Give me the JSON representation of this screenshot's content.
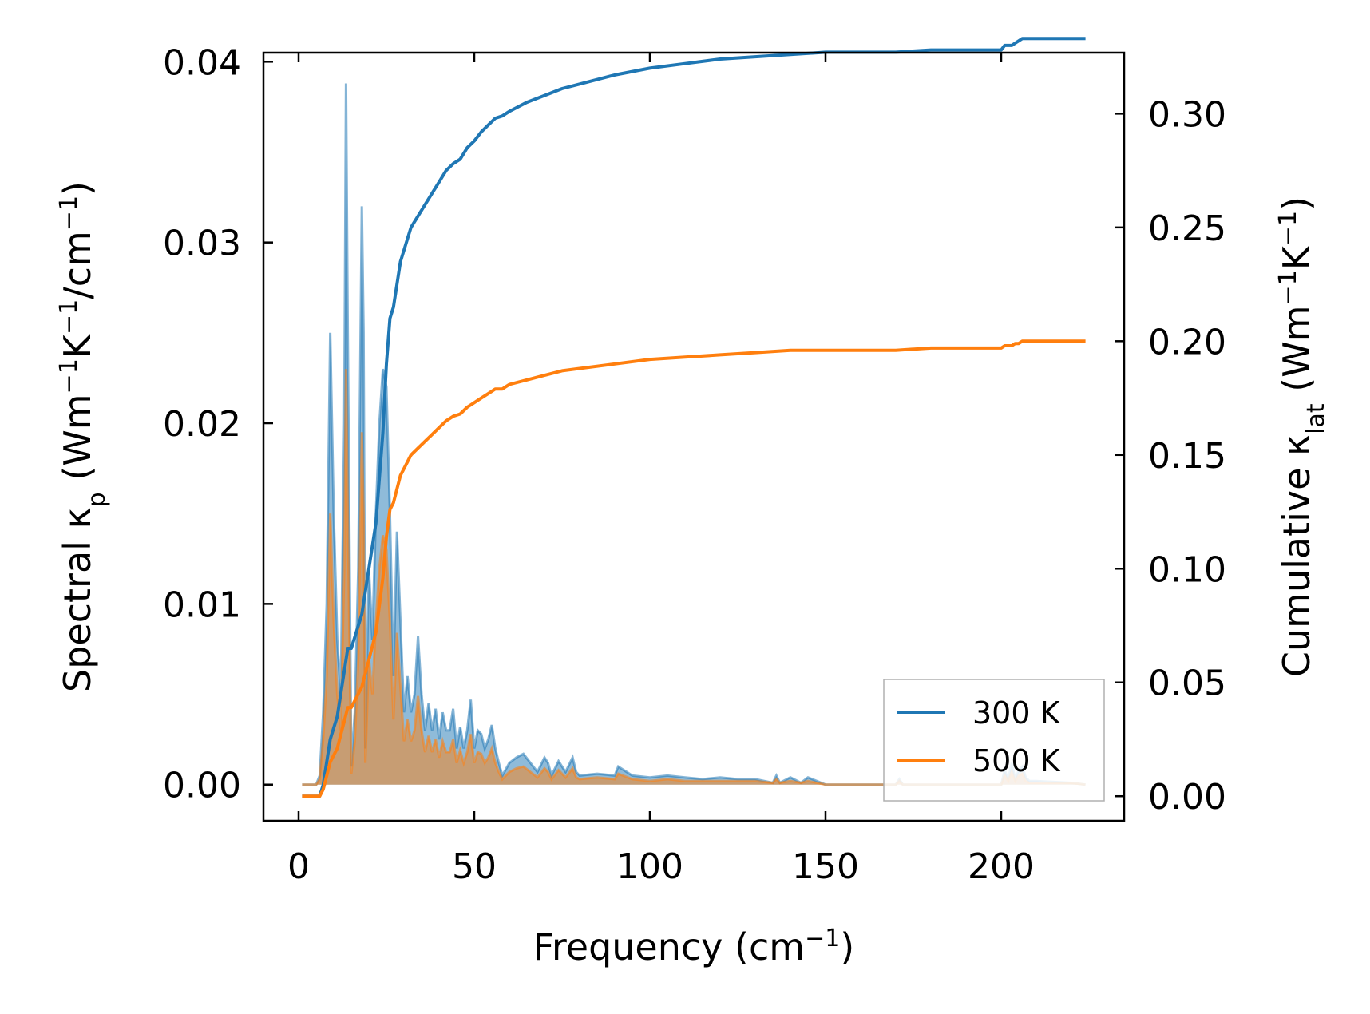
{
  "chart_data": {
    "type": "line",
    "xlabel": {
      "main": "Frequency (cm",
      "sup": "−1",
      "tail": ")"
    },
    "ylabel_left": {
      "pre": "Spectral κ",
      "sub": "p",
      "mid": " (Wm",
      "sup1": "−1",
      "k": "K",
      "sup2": "−1",
      "slash": "/cm",
      "sup3": "−1",
      "tail": ")"
    },
    "ylabel_right": {
      "pre": "Cumulative κ",
      "sub": "lat",
      "mid": " (Wm",
      "sup1": "−1",
      "k": "K",
      "sup2": "−1",
      "tail": ")"
    },
    "xlim": [
      -10,
      235
    ],
    "ylim_left": [
      -0.002,
      0.0405
    ],
    "ylim_right": [
      -0.0108,
      0.3268
    ],
    "xticks": [
      0,
      50,
      100,
      150,
      200
    ],
    "xtick_labels": [
      "0",
      "50",
      "100",
      "150",
      "200"
    ],
    "yticks_left": [
      0.0,
      0.01,
      0.02,
      0.03,
      0.04
    ],
    "ytick_labels_left": [
      "0.00",
      "0.01",
      "0.02",
      "0.03",
      "0.04"
    ],
    "yticks_right": [
      0.0,
      0.05,
      0.1,
      0.15,
      0.2,
      0.25,
      0.3
    ],
    "ytick_labels_right": [
      "0.00",
      "0.05",
      "0.10",
      "0.15",
      "0.20",
      "0.25",
      "0.30"
    ],
    "legend": {
      "placement": "lower-right"
    },
    "colors": {
      "300": "#1f77b4",
      "500": "#ff7f0e"
    },
    "spectral_x": [
      1,
      5,
      6,
      7,
      8,
      9,
      10,
      11,
      12,
      13,
      13.5,
      14,
      15,
      16,
      17,
      18,
      18.5,
      19,
      20,
      21,
      22,
      23,
      24,
      25,
      26,
      27,
      28,
      29,
      30,
      31,
      32,
      33,
      34,
      35,
      36,
      37,
      38,
      39,
      40,
      41,
      42,
      43,
      44,
      45,
      46,
      47,
      48,
      49,
      50,
      51,
      52,
      53,
      54,
      55,
      56,
      57,
      58,
      60,
      62,
      64,
      66,
      68,
      70,
      71,
      72,
      74,
      76,
      78,
      79,
      80,
      85,
      90,
      91,
      95,
      100,
      105,
      110,
      115,
      120,
      125,
      130,
      135,
      136,
      137,
      140,
      143,
      145,
      150,
      160,
      170,
      171,
      172,
      180,
      190,
      200,
      201,
      202,
      203,
      204,
      205,
      206,
      207,
      208,
      210,
      220,
      224
    ],
    "series": [
      {
        "name": "300 K",
        "spectral": [
          0,
          0,
          0.0005,
          0.004,
          0.01,
          0.025,
          0.015,
          0.008,
          0.005,
          0.02,
          0.0388,
          0.025,
          0.001,
          0.004,
          0.012,
          0.032,
          0.025,
          0.002,
          0.012,
          0.008,
          0.015,
          0.02,
          0.023,
          0.022,
          0.015,
          0.006,
          0.014,
          0.009,
          0.004,
          0.006,
          0.004,
          0.005,
          0.0082,
          0.005,
          0.003,
          0.0045,
          0.003,
          0.0042,
          0.0025,
          0.004,
          0.003,
          0.003,
          0.0042,
          0.002,
          0.0032,
          0.002,
          0.003,
          0.0047,
          0.002,
          0.003,
          0.0028,
          0.002,
          0.0025,
          0.0033,
          0.002,
          0.0012,
          0.0005,
          0.0012,
          0.0015,
          0.0017,
          0.0012,
          0.0007,
          0.0015,
          0.0012,
          0.0005,
          0.0013,
          0.0007,
          0.0015,
          0.0007,
          0.0005,
          0.0006,
          0.0005,
          0.001,
          0.0005,
          0.0004,
          0.0005,
          0.0004,
          0.0003,
          0.0004,
          0.0003,
          0.0003,
          0.0001,
          0.0005,
          0.0001,
          0.0004,
          0.0001,
          0.0004,
          0.0,
          0.0,
          0.0,
          0.0003,
          0.0,
          0.0,
          0.0,
          0.0,
          0.0008,
          0.0003,
          0.0012,
          0.0003,
          0.0008,
          0.001,
          0.0004,
          0.0002,
          0.0002,
          0.0001,
          0.0
        ],
        "cum_x": [
          1,
          5,
          6,
          7,
          8,
          9,
          10,
          11,
          12,
          13,
          14,
          15,
          16,
          17,
          18,
          19,
          20,
          21,
          22,
          23,
          24,
          25,
          26,
          27,
          28,
          29,
          30,
          32,
          34,
          36,
          38,
          40,
          42,
          44,
          46,
          48,
          50,
          52,
          54,
          56,
          58,
          60,
          65,
          70,
          75,
          80,
          90,
          100,
          110,
          120,
          130,
          140,
          150,
          160,
          170,
          180,
          190,
          200,
          201,
          203,
          204,
          205,
          206,
          207,
          208,
          210,
          224
        ],
        "cum_y": [
          0,
          0,
          0,
          0.005,
          0.015,
          0.025,
          0.03,
          0.035,
          0.045,
          0.055,
          0.065,
          0.065,
          0.07,
          0.075,
          0.08,
          0.09,
          0.1,
          0.11,
          0.12,
          0.14,
          0.16,
          0.19,
          0.21,
          0.215,
          0.225,
          0.235,
          0.24,
          0.25,
          0.255,
          0.26,
          0.265,
          0.27,
          0.275,
          0.278,
          0.28,
          0.285,
          0.288,
          0.292,
          0.295,
          0.298,
          0.299,
          0.301,
          0.305,
          0.308,
          0.311,
          0.313,
          0.317,
          0.32,
          0.322,
          0.324,
          0.325,
          0.326,
          0.327,
          0.327,
          0.327,
          0.328,
          0.328,
          0.328,
          0.33,
          0.33,
          0.331,
          0.332,
          0.333,
          0.333,
          0.333,
          0.333,
          0.333
        ]
      },
      {
        "name": "500 K",
        "spectral": [
          0,
          0,
          0.0003,
          0.0025,
          0.006,
          0.015,
          0.009,
          0.005,
          0.003,
          0.012,
          0.023,
          0.015,
          0.0006,
          0.0024,
          0.007,
          0.0195,
          0.015,
          0.0012,
          0.007,
          0.005,
          0.009,
          0.012,
          0.0138,
          0.013,
          0.009,
          0.0036,
          0.0084,
          0.0054,
          0.0024,
          0.0036,
          0.0024,
          0.003,
          0.0049,
          0.003,
          0.0018,
          0.0027,
          0.0018,
          0.0025,
          0.0015,
          0.0024,
          0.0018,
          0.0018,
          0.0025,
          0.0012,
          0.0019,
          0.0012,
          0.0018,
          0.0028,
          0.0012,
          0.0018,
          0.0017,
          0.0012,
          0.0015,
          0.002,
          0.0012,
          0.0007,
          0.0003,
          0.0007,
          0.0009,
          0.001,
          0.0007,
          0.0004,
          0.0009,
          0.0007,
          0.0003,
          0.0008,
          0.0004,
          0.0009,
          0.0004,
          0.0003,
          0.0004,
          0.0003,
          0.0006,
          0.0003,
          0.0002,
          0.0003,
          0.0002,
          0.0002,
          0.0002,
          0.0002,
          0.0002,
          0.0001,
          0.0003,
          0.0001,
          0.0002,
          0.0001,
          0.0002,
          0.0,
          0.0,
          0.0,
          0.0002,
          0.0,
          0.0,
          0.0,
          0.0,
          0.0005,
          0.0002,
          0.0007,
          0.0002,
          0.0005,
          0.0006,
          0.0002,
          0.0001,
          0.0001,
          0.0001,
          0.0
        ],
        "cum_x": [
          1,
          5,
          6,
          7,
          8,
          9,
          10,
          11,
          12,
          13,
          14,
          15,
          16,
          17,
          18,
          19,
          20,
          21,
          22,
          23,
          24,
          25,
          26,
          27,
          28,
          29,
          30,
          32,
          34,
          36,
          38,
          40,
          42,
          44,
          46,
          48,
          50,
          52,
          54,
          56,
          58,
          60,
          65,
          70,
          75,
          80,
          90,
          100,
          110,
          120,
          130,
          140,
          150,
          160,
          170,
          180,
          190,
          200,
          201,
          203,
          204,
          205,
          206,
          207,
          208,
          210,
          224
        ],
        "cum_y": [
          0,
          0,
          0,
          0.003,
          0.009,
          0.015,
          0.018,
          0.021,
          0.027,
          0.033,
          0.039,
          0.039,
          0.042,
          0.045,
          0.048,
          0.054,
          0.06,
          0.066,
          0.072,
          0.084,
          0.096,
          0.114,
          0.126,
          0.129,
          0.135,
          0.141,
          0.144,
          0.15,
          0.153,
          0.156,
          0.159,
          0.162,
          0.165,
          0.167,
          0.168,
          0.171,
          0.173,
          0.175,
          0.177,
          0.179,
          0.179,
          0.181,
          0.183,
          0.185,
          0.187,
          0.188,
          0.19,
          0.192,
          0.193,
          0.194,
          0.195,
          0.196,
          0.196,
          0.196,
          0.196,
          0.197,
          0.197,
          0.197,
          0.198,
          0.198,
          0.199,
          0.199,
          0.2,
          0.2,
          0.2,
          0.2,
          0.2
        ]
      }
    ]
  }
}
